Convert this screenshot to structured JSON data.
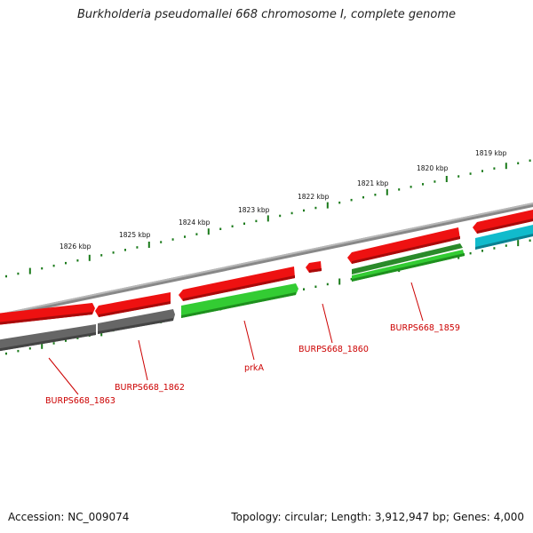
{
  "title": "Burkholderia pseudomallei 668 chromosome I, complete genome",
  "footer": {
    "accession": "Accession: NC_009074",
    "topology": "Topology: circular; Length: 3,912,947 bp; Genes: 4,000"
  },
  "ruler": {
    "labels": [
      "1826 kbp",
      "1825 kbp",
      "1824 kbp",
      "1823 kbp",
      "1822 kbp",
      "1821 kbp",
      "1820 kbp",
      "1819 kbp"
    ]
  },
  "genes": [
    {
      "name": "BURPS668_1863"
    },
    {
      "name": "BURPS668_1862"
    },
    {
      "name": "prkA"
    },
    {
      "name": "BURPS668_1860"
    },
    {
      "name": "BURPS668_1859"
    }
  ],
  "colors": {
    "forward_cds": "#ee1111",
    "reverse_cds": "#666666",
    "green_cds": "#33cc33",
    "dark_green_cds": "#2a8a2a",
    "cyan_cds": "#11bbcc",
    "ticks": "#1a7a1a",
    "backbone": "#888888",
    "label": "#cc0000"
  }
}
